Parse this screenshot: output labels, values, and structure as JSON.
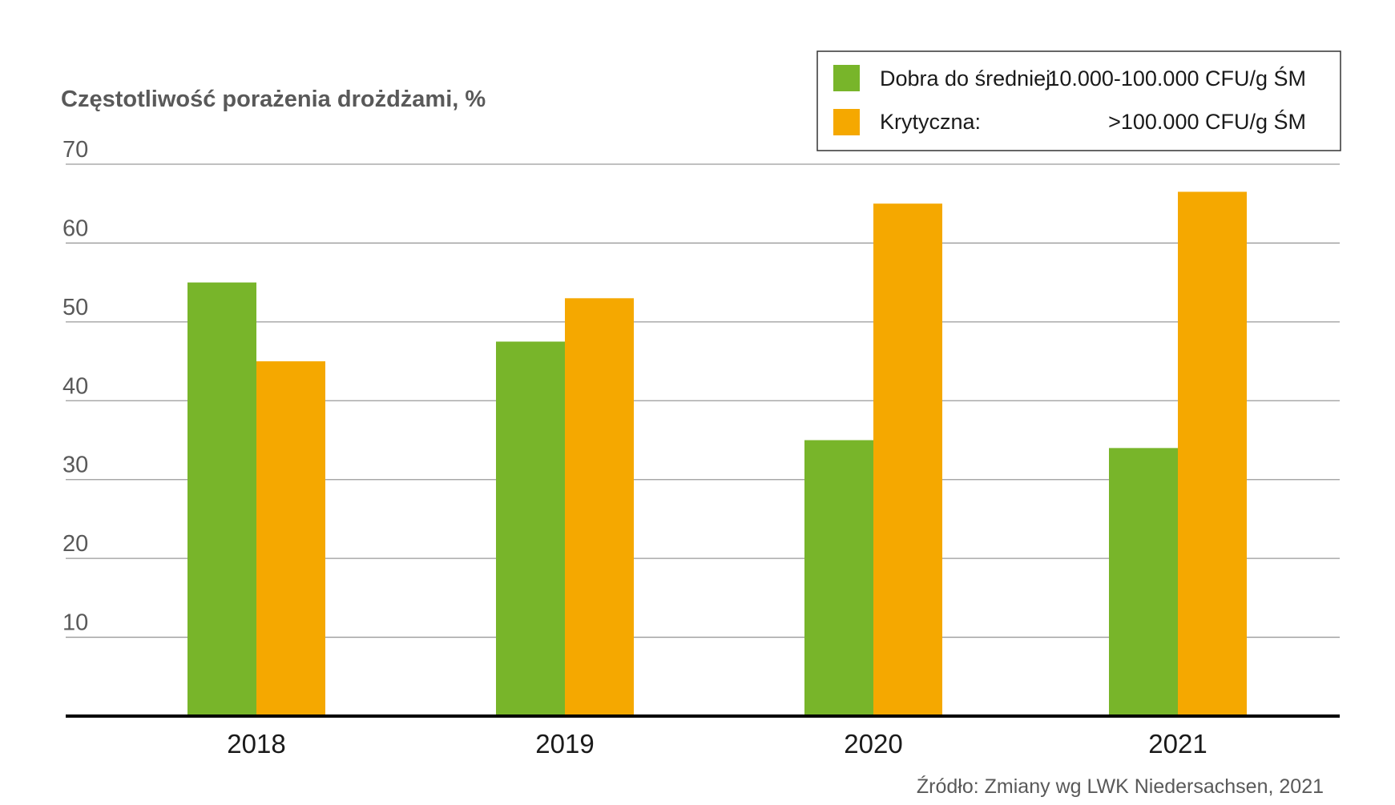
{
  "chart_data": {
    "type": "bar",
    "title": "Częstotliwość porażenia drożdżami, %",
    "categories": [
      "2018",
      "2019",
      "2020",
      "2021"
    ],
    "series": [
      {
        "name": "Dobra do średniej:",
        "range_label": "10.000-100.000 CFU/g ŚM",
        "color": "#78b52a",
        "values": [
          55,
          47.5,
          35,
          34
        ]
      },
      {
        "name": "Krytyczna:",
        "range_label": ">100.000 CFU/g ŚM",
        "color": "#f5a800",
        "values": [
          45,
          53,
          65,
          66.5
        ]
      }
    ],
    "yticks": [
      10,
      20,
      30,
      40,
      50,
      60,
      70
    ],
    "ylim": [
      0,
      70
    ],
    "grid": true,
    "legend_position": "top-right",
    "source": "Źródło: Zmiany wg LWK Niedersachsen, 2021"
  }
}
